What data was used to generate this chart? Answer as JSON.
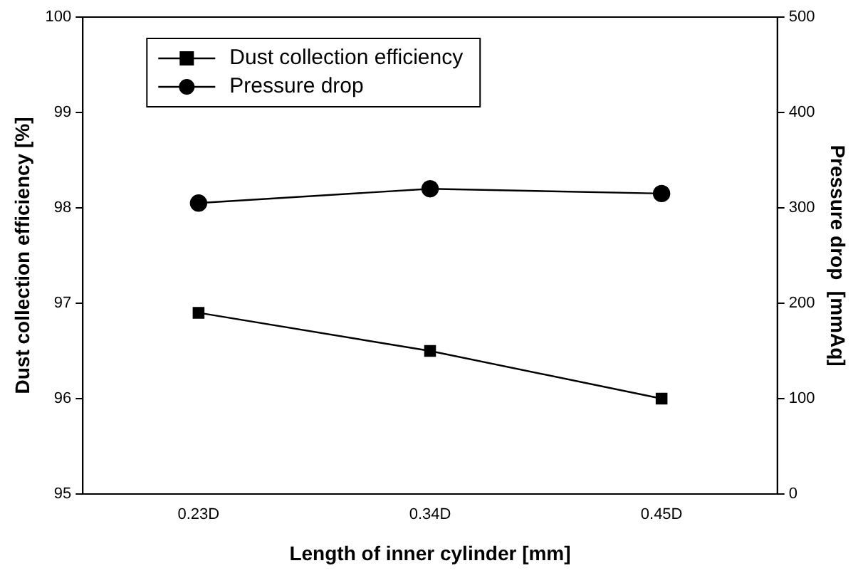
{
  "chart_data": {
    "type": "line",
    "xlabel": "Length of inner cylinder [mm]",
    "ylabel": "Dust collection efficiency [%]",
    "y2label": "Pressure drop  [mmAq]",
    "categories": [
      "0.23D",
      "0.34D",
      "0.45D"
    ],
    "series": [
      {
        "name": "Dust collection efficiency",
        "color": "#000000",
        "marker": "square",
        "values": [
          96.9,
          96.5,
          96.0
        ]
      },
      {
        "name": "Pressure drop",
        "color": "#000000",
        "marker": "circle",
        "axis": "y2",
        "values": [
          305,
          320,
          315
        ]
      }
    ],
    "ylim": [
      95,
      100
    ],
    "yticks": [
      95,
      96,
      97,
      98,
      99,
      100
    ],
    "y2lim": [
      0,
      500
    ],
    "y2ticks": [
      0,
      100,
      200,
      300,
      400,
      500
    ],
    "grid": false,
    "legend": "top left",
    "line_style": "solid"
  }
}
